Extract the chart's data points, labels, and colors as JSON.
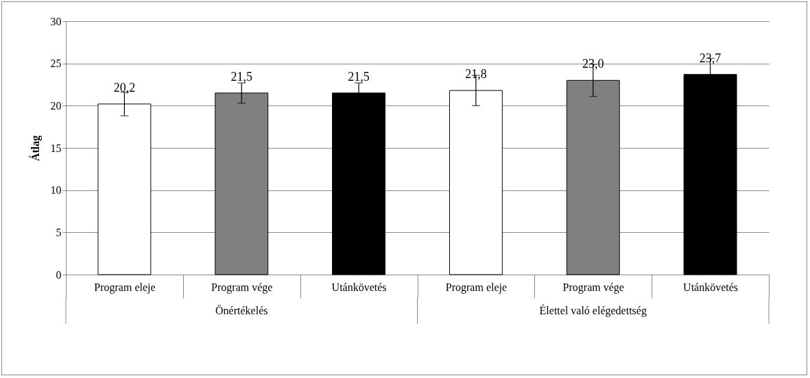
{
  "chart_data": {
    "type": "bar",
    "ylabel": "Átlag",
    "categories": [
      "Program eleje",
      "Program vége",
      "Utánkövetés",
      "Program eleje",
      "Program vége",
      "Utánkövetés"
    ],
    "values": [
      20.2,
      21.5,
      21.5,
      21.8,
      23.0,
      23.7
    ],
    "colors": [
      "#ffffff",
      "#808080",
      "#000000",
      "#ffffff",
      "#808080",
      "#000000"
    ],
    "errors": [
      1.4,
      1.2,
      1.2,
      1.8,
      1.9,
      1.9
    ],
    "value_labels": [
      "20,2",
      "21,5",
      "21,5",
      "21,8",
      "23,0",
      "23,7"
    ],
    "annotations": [
      "Önértékelés",
      "Élettel való elégedettség"
    ],
    "ylim": [
      0,
      30
    ],
    "yticks": [
      0,
      5,
      10,
      15,
      20,
      25,
      30
    ],
    "grid": "y"
  }
}
